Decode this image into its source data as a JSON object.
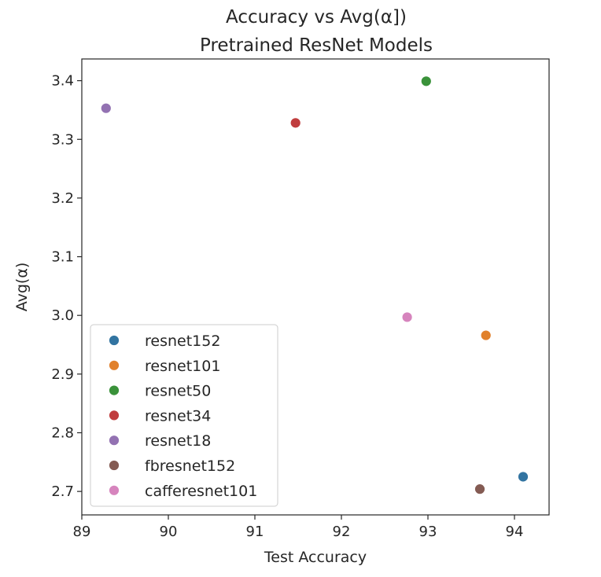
{
  "chart_data": {
    "type": "scatter",
    "title": "Accuracy vs Avg(α])",
    "subtitle": "Pretrained ResNet  Models",
    "xlabel": "Test Accuracy",
    "ylabel": "Avg(α)",
    "xlim": [
      89,
      94.4
    ],
    "ylim": [
      2.66,
      3.437
    ],
    "xticks": [
      89,
      90,
      91,
      92,
      93,
      94
    ],
    "yticks": [
      2.7,
      2.8,
      2.9,
      3.0,
      3.1,
      3.2,
      3.3,
      3.4
    ],
    "grid": false,
    "legend_position": "lower-left",
    "series": [
      {
        "name": "resnet152",
        "color": "#3274a1",
        "points": [
          {
            "x": 94.1,
            "y": 2.725
          }
        ]
      },
      {
        "name": "resnet101",
        "color": "#e1812c",
        "points": [
          {
            "x": 93.67,
            "y": 2.966
          }
        ]
      },
      {
        "name": "resnet50",
        "color": "#3a923a",
        "points": [
          {
            "x": 92.98,
            "y": 3.399
          }
        ]
      },
      {
        "name": "resnet34",
        "color": "#c03d3e",
        "points": [
          {
            "x": 91.47,
            "y": 3.328
          }
        ]
      },
      {
        "name": "resnet18",
        "color": "#9372b2",
        "points": [
          {
            "x": 89.28,
            "y": 3.353
          }
        ]
      },
      {
        "name": "fbresnet152",
        "color": "#845b53",
        "points": [
          {
            "x": 93.6,
            "y": 2.704
          }
        ]
      },
      {
        "name": "cafferesnet101",
        "color": "#d684bd",
        "points": [
          {
            "x": 92.76,
            "y": 2.997
          }
        ]
      }
    ]
  }
}
